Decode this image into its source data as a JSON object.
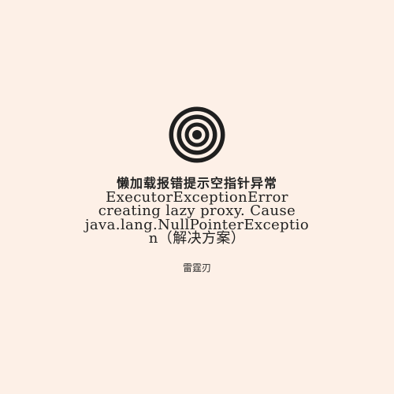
{
  "cover": {
    "logo_icon": "concentric-circles-icon",
    "title_lines": [
      "懒加载报错提示空指针异常",
      "ExecutorExceptionError",
      "creating lazy proxy. Cause",
      "java.lang.NullPointerExceptio",
      "n（解决方案）"
    ],
    "author": "雷霆刃"
  },
  "colors": {
    "background": "#fdf0e7",
    "text": "#1f1f1f"
  }
}
